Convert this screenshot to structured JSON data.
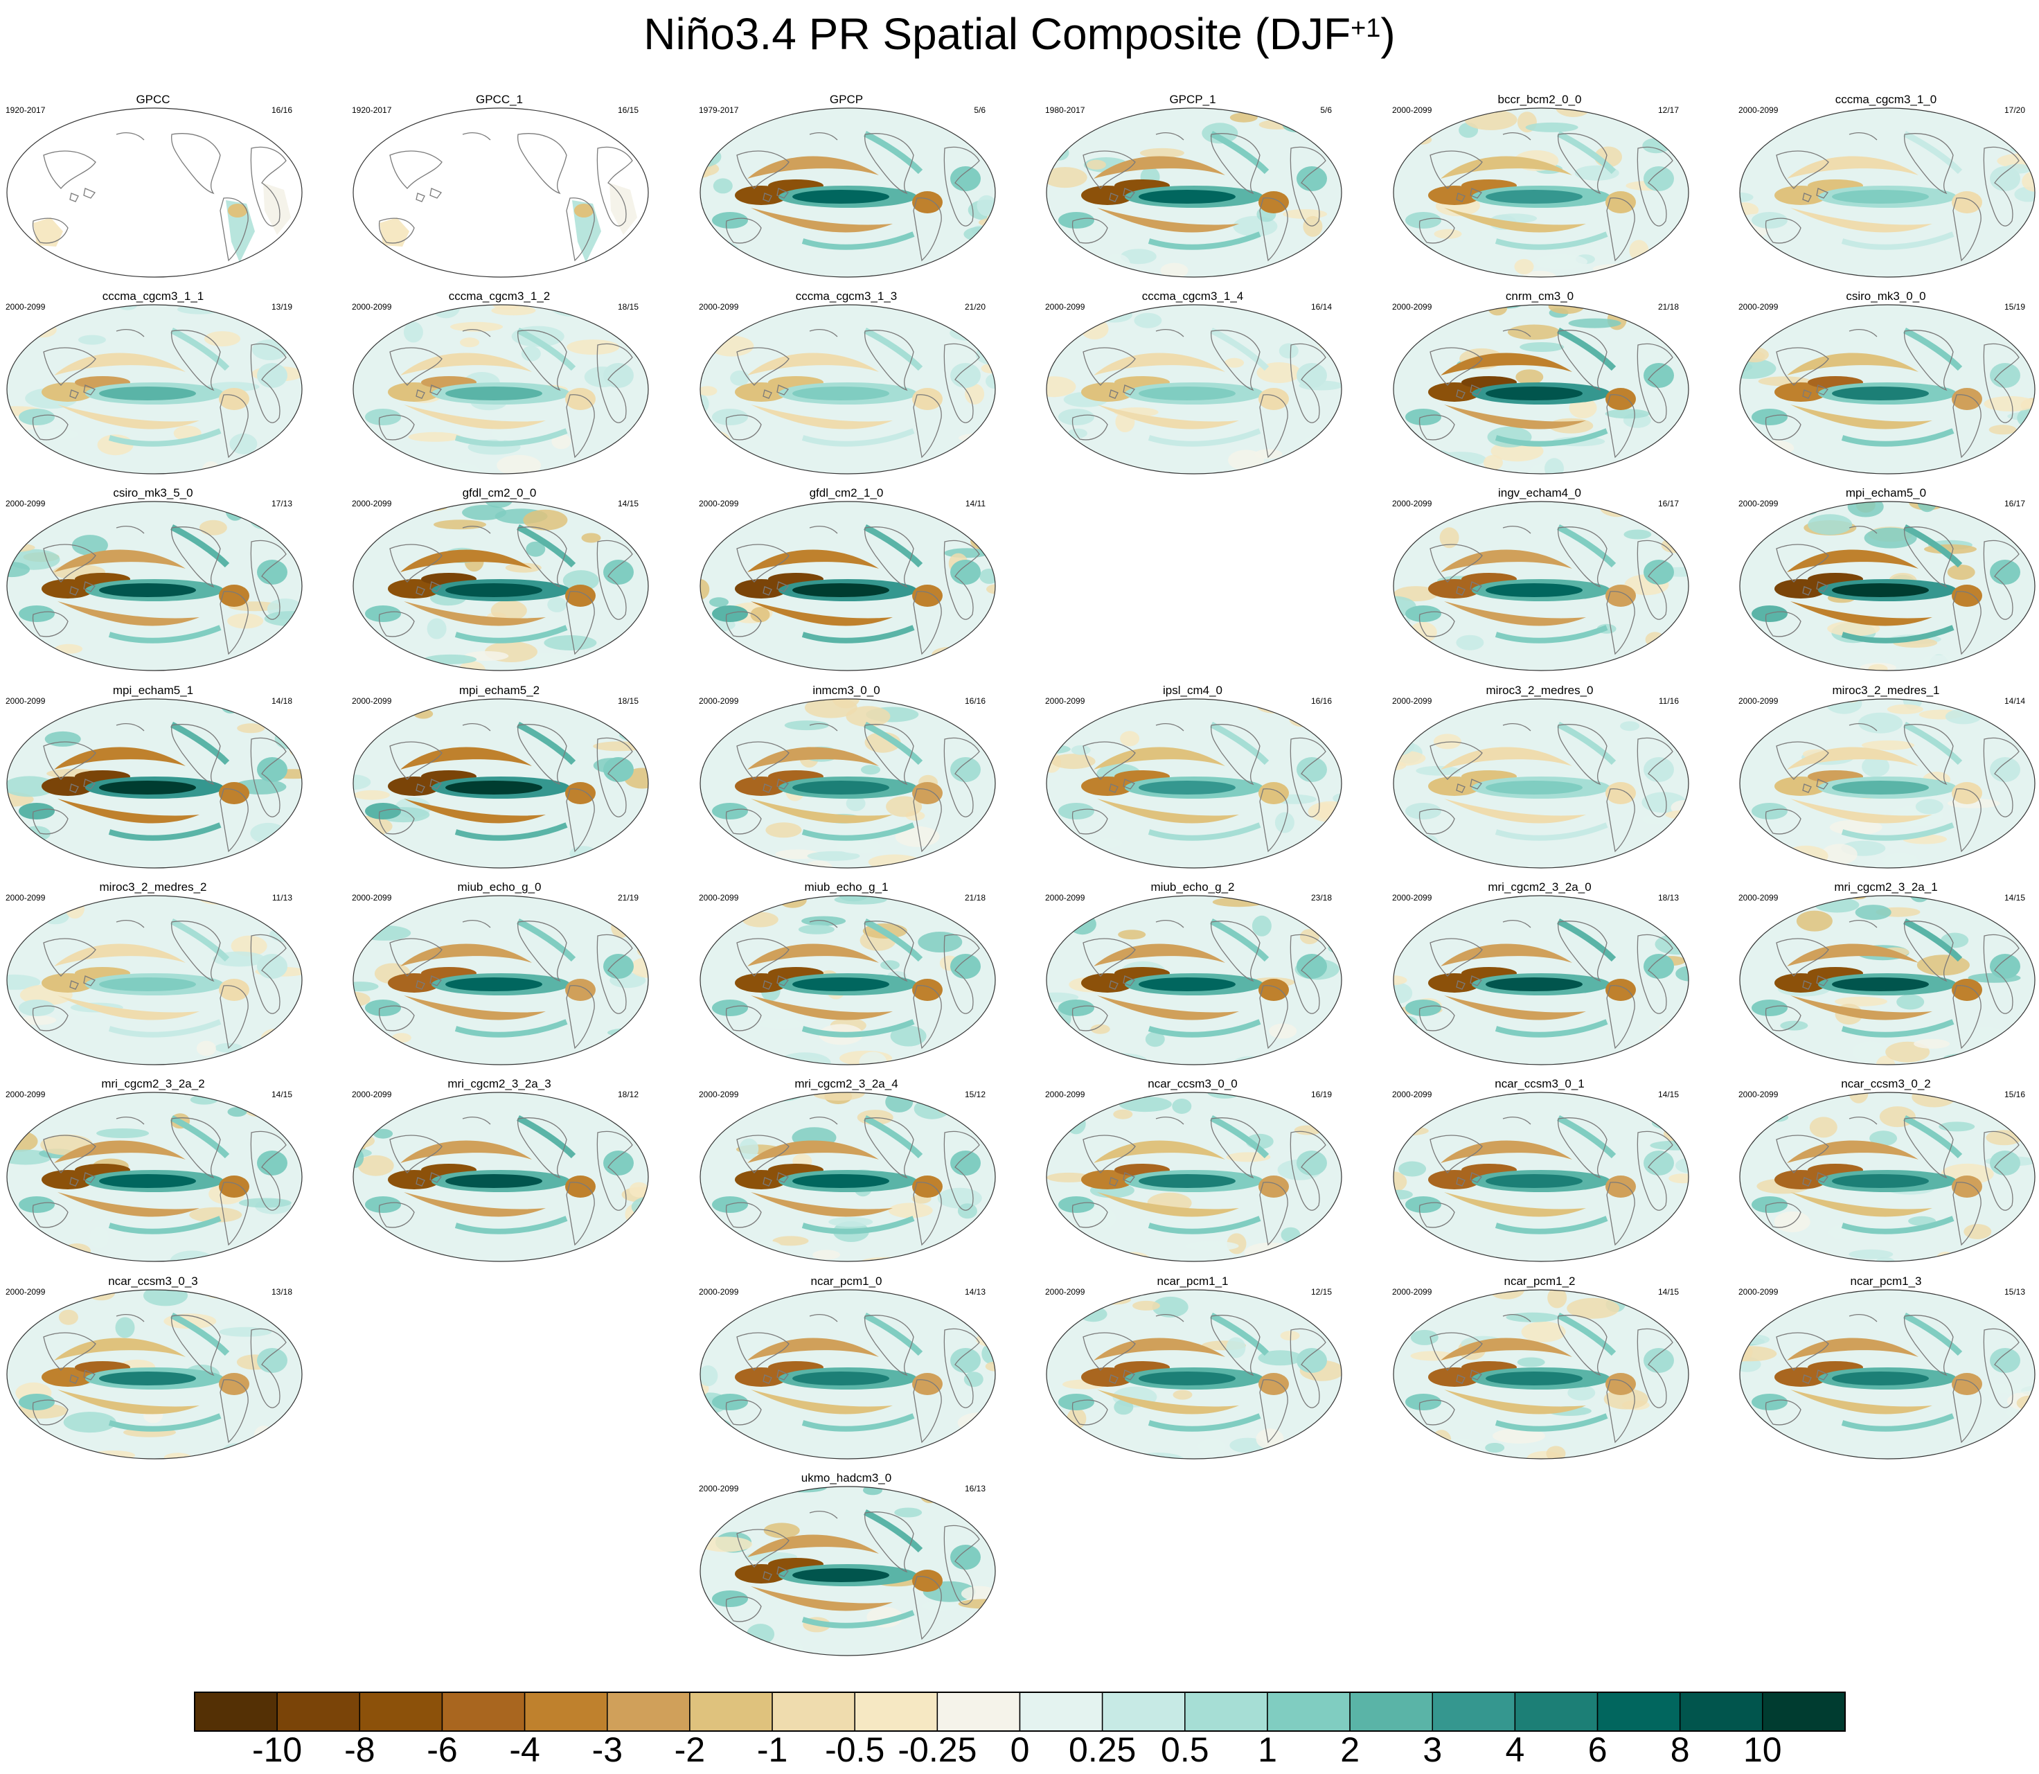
{
  "title": {
    "main": "Niño3.4 PR Spatial Composite (DJF",
    "superscript": "+1",
    "suffix": ")"
  },
  "colors": {
    "land_outline": "#7a7a7a",
    "map_border": "#333333",
    "colorbar": [
      "#543005",
      "#7a4408",
      "#8c510a",
      "#a9661f",
      "#bf812d",
      "#d0a05a",
      "#dfc27d",
      "#efdcae",
      "#f6e8c3",
      "#f5f3ea",
      "#e4f3f0",
      "#c7eae5",
      "#a6ded5",
      "#80cdc1",
      "#5ab4a7",
      "#35978f",
      "#1c7f76",
      "#01665e",
      "#01554d",
      "#003c30"
    ]
  },
  "colorbar_labels": [
    "-10",
    "-8",
    "-6",
    "-4",
    "-3",
    "-2",
    "-1",
    "-0.5",
    "-0.25",
    "0",
    "0.25",
    "0.5",
    "1",
    "2",
    "3",
    "4",
    "6",
    "8",
    "10"
  ],
  "chart_data": {
    "type": "heatmap",
    "title": "Niño3.4 PR Spatial Composite (DJF+1)",
    "variable": "PR",
    "projection": "robinson-global",
    "colorbar_levels": [
      -10,
      -8,
      -6,
      -4,
      -3,
      -2,
      -1,
      -0.5,
      -0.25,
      0,
      0.25,
      0.5,
      1,
      2,
      3,
      4,
      6,
      8,
      10
    ],
    "grid": {
      "rows": 8,
      "cols": 6
    },
    "panels": [
      {
        "name": "GPCC",
        "years": "1920-2017",
        "count": "16/16",
        "row": 0,
        "col": 0,
        "strength": 0.2,
        "style": "land-only"
      },
      {
        "name": "GPCC_1",
        "years": "1920-2017",
        "count": "16/15",
        "row": 0,
        "col": 1,
        "strength": 0.2,
        "style": "land-only"
      },
      {
        "name": "GPCP",
        "years": "1979-2017",
        "count": "5/6",
        "row": 0,
        "col": 2,
        "strength": 0.85,
        "style": "obs"
      },
      {
        "name": "GPCP_1",
        "years": "1980-2017",
        "count": "5/6",
        "row": 0,
        "col": 3,
        "strength": 0.85,
        "style": "obs"
      },
      {
        "name": "bccr_bcm2_0_0",
        "years": "2000-2099",
        "count": "12/17",
        "row": 0,
        "col": 4,
        "strength": 0.6
      },
      {
        "name": "cccma_cgcm3_1_0",
        "years": "2000-2099",
        "count": "17/20",
        "row": 0,
        "col": 5,
        "strength": 0.35
      },
      {
        "name": "cccma_cgcm3_1_1",
        "years": "2000-2099",
        "count": "13/19",
        "row": 1,
        "col": 0,
        "strength": 0.45
      },
      {
        "name": "cccma_cgcm3_1_2",
        "years": "2000-2099",
        "count": "18/15",
        "row": 1,
        "col": 1,
        "strength": 0.45
      },
      {
        "name": "cccma_cgcm3_1_3",
        "years": "2000-2099",
        "count": "21/20",
        "row": 1,
        "col": 2,
        "strength": 0.4
      },
      {
        "name": "cccma_cgcm3_1_4",
        "years": "2000-2099",
        "count": "16/14",
        "row": 1,
        "col": 3,
        "strength": 0.35
      },
      {
        "name": "cnrm_cm3_0",
        "years": "2000-2099",
        "count": "21/18",
        "row": 1,
        "col": 4,
        "strength": 0.95
      },
      {
        "name": "csiro_mk3_0_0",
        "years": "2000-2099",
        "count": "15/19",
        "row": 1,
        "col": 5,
        "strength": 0.7
      },
      {
        "name": "csiro_mk3_5_0",
        "years": "2000-2099",
        "count": "17/13",
        "row": 2,
        "col": 0,
        "strength": 0.9
      },
      {
        "name": "gfdl_cm2_0_0",
        "years": "2000-2099",
        "count": "14/15",
        "row": 2,
        "col": 1,
        "strength": 0.95
      },
      {
        "name": "gfdl_cm2_1_0",
        "years": "2000-2099",
        "count": "14/11",
        "row": 2,
        "col": 2,
        "strength": 1.0
      },
      {
        "name": "ingv_echam4_0",
        "years": "2000-2099",
        "count": "16/17",
        "row": 2,
        "col": 4,
        "strength": 0.8
      },
      {
        "name": "mpi_echam5_0",
        "years": "2000-2099",
        "count": "16/17",
        "row": 2,
        "col": 5,
        "strength": 1.0
      },
      {
        "name": "mpi_echam5_1",
        "years": "2000-2099",
        "count": "14/18",
        "row": 3,
        "col": 0,
        "strength": 1.0
      },
      {
        "name": "mpi_echam5_2",
        "years": "2000-2099",
        "count": "18/15",
        "row": 3,
        "col": 1,
        "strength": 1.0
      },
      {
        "name": "inmcm3_0_0",
        "years": "2000-2099",
        "count": "16/16",
        "row": 3,
        "col": 2,
        "strength": 0.75
      },
      {
        "name": "ipsl_cm4_0",
        "years": "2000-2099",
        "count": "16/16",
        "row": 3,
        "col": 3,
        "strength": 0.6
      },
      {
        "name": "miroc3_2_medres_0",
        "years": "2000-2099",
        "count": "11/16",
        "row": 3,
        "col": 4,
        "strength": 0.4
      },
      {
        "name": "miroc3_2_medres_1",
        "years": "2000-2099",
        "count": "14/14",
        "row": 3,
        "col": 5,
        "strength": 0.45
      },
      {
        "name": "miroc3_2_medres_2",
        "years": "2000-2099",
        "count": "11/13",
        "row": 4,
        "col": 0,
        "strength": 0.4
      },
      {
        "name": "miub_echo_g_0",
        "years": "2000-2099",
        "count": "21/19",
        "row": 4,
        "col": 1,
        "strength": 0.8
      },
      {
        "name": "miub_echo_g_1",
        "years": "2000-2099",
        "count": "21/18",
        "row": 4,
        "col": 2,
        "strength": 0.85
      },
      {
        "name": "miub_echo_g_2",
        "years": "2000-2099",
        "count": "23/18",
        "row": 4,
        "col": 3,
        "strength": 0.85
      },
      {
        "name": "mri_cgcm2_3_2a_0",
        "years": "2000-2099",
        "count": "18/13",
        "row": 4,
        "col": 4,
        "strength": 0.9
      },
      {
        "name": "mri_cgcm2_3_2a_1",
        "years": "2000-2099",
        "count": "14/15",
        "row": 4,
        "col": 5,
        "strength": 0.9
      },
      {
        "name": "mri_cgcm2_3_2a_2",
        "years": "2000-2099",
        "count": "14/15",
        "row": 5,
        "col": 0,
        "strength": 0.85
      },
      {
        "name": "mri_cgcm2_3_2a_3",
        "years": "2000-2099",
        "count": "18/12",
        "row": 5,
        "col": 1,
        "strength": 0.9
      },
      {
        "name": "mri_cgcm2_3_2a_4",
        "years": "2000-2099",
        "count": "15/12",
        "row": 5,
        "col": 2,
        "strength": 0.85
      },
      {
        "name": "ncar_ccsm3_0_0",
        "years": "2000-2099",
        "count": "16/19",
        "row": 5,
        "col": 3,
        "strength": 0.7
      },
      {
        "name": "ncar_ccsm3_0_1",
        "years": "2000-2099",
        "count": "14/15",
        "row": 5,
        "col": 4,
        "strength": 0.75
      },
      {
        "name": "ncar_ccsm3_0_2",
        "years": "2000-2099",
        "count": "15/16",
        "row": 5,
        "col": 5,
        "strength": 0.75
      },
      {
        "name": "ncar_ccsm3_0_3",
        "years": "2000-2099",
        "count": "13/18",
        "row": 6,
        "col": 0,
        "strength": 0.7
      },
      {
        "name": "ncar_pcm1_0",
        "years": "2000-2099",
        "count": "14/13",
        "row": 6,
        "col": 2,
        "strength": 0.75
      },
      {
        "name": "ncar_pcm1_1",
        "years": "2000-2099",
        "count": "12/15",
        "row": 6,
        "col": 3,
        "strength": 0.75
      },
      {
        "name": "ncar_pcm1_2",
        "years": "2000-2099",
        "count": "14/15",
        "row": 6,
        "col": 4,
        "strength": 0.75
      },
      {
        "name": "ncar_pcm1_3",
        "years": "2000-2099",
        "count": "15/13",
        "row": 6,
        "col": 5,
        "strength": 0.75
      },
      {
        "name": "ukmo_hadcm3_0",
        "years": "2000-2099",
        "count": "16/13",
        "row": 7,
        "col": 2,
        "strength": 0.9
      }
    ]
  }
}
